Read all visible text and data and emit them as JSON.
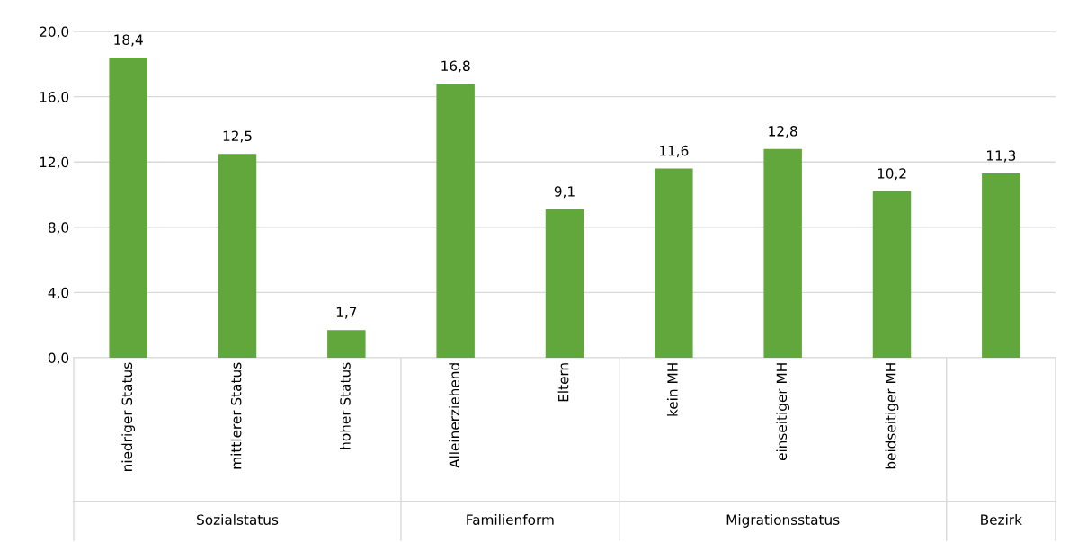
{
  "chart_data": {
    "type": "bar",
    "categories": [
      "niedriger Status",
      "mittlerer Status",
      "hoher Status",
      "Alleinerziehend",
      "Eltern",
      "kein MH",
      "einseitiger MH",
      "beidseitiger MH",
      null
    ],
    "values": [
      18.4,
      12.5,
      1.7,
      16.8,
      9.1,
      11.6,
      12.8,
      10.2,
      11.3
    ],
    "value_labels": [
      "18,4",
      "12,5",
      "1,7",
      "16,8",
      "9,1",
      "11,6",
      "12,8",
      "10,2",
      "11,3"
    ],
    "color": "#62a73b",
    "ylim": [
      0,
      20
    ],
    "yticks": [
      {
        "value": 0,
        "label": "0,0"
      },
      {
        "value": 4,
        "label": "4,0"
      },
      {
        "value": 8,
        "label": "8,0"
      },
      {
        "value": 12,
        "label": "12,0"
      },
      {
        "value": 16,
        "label": "16,0"
      },
      {
        "value": 20,
        "label": "20,0"
      }
    ],
    "grid": "y",
    "legend": false,
    "annotations": [
      "Sozialstatus",
      "Familienform",
      "Migrationsstatus",
      "Bezirk"
    ]
  }
}
